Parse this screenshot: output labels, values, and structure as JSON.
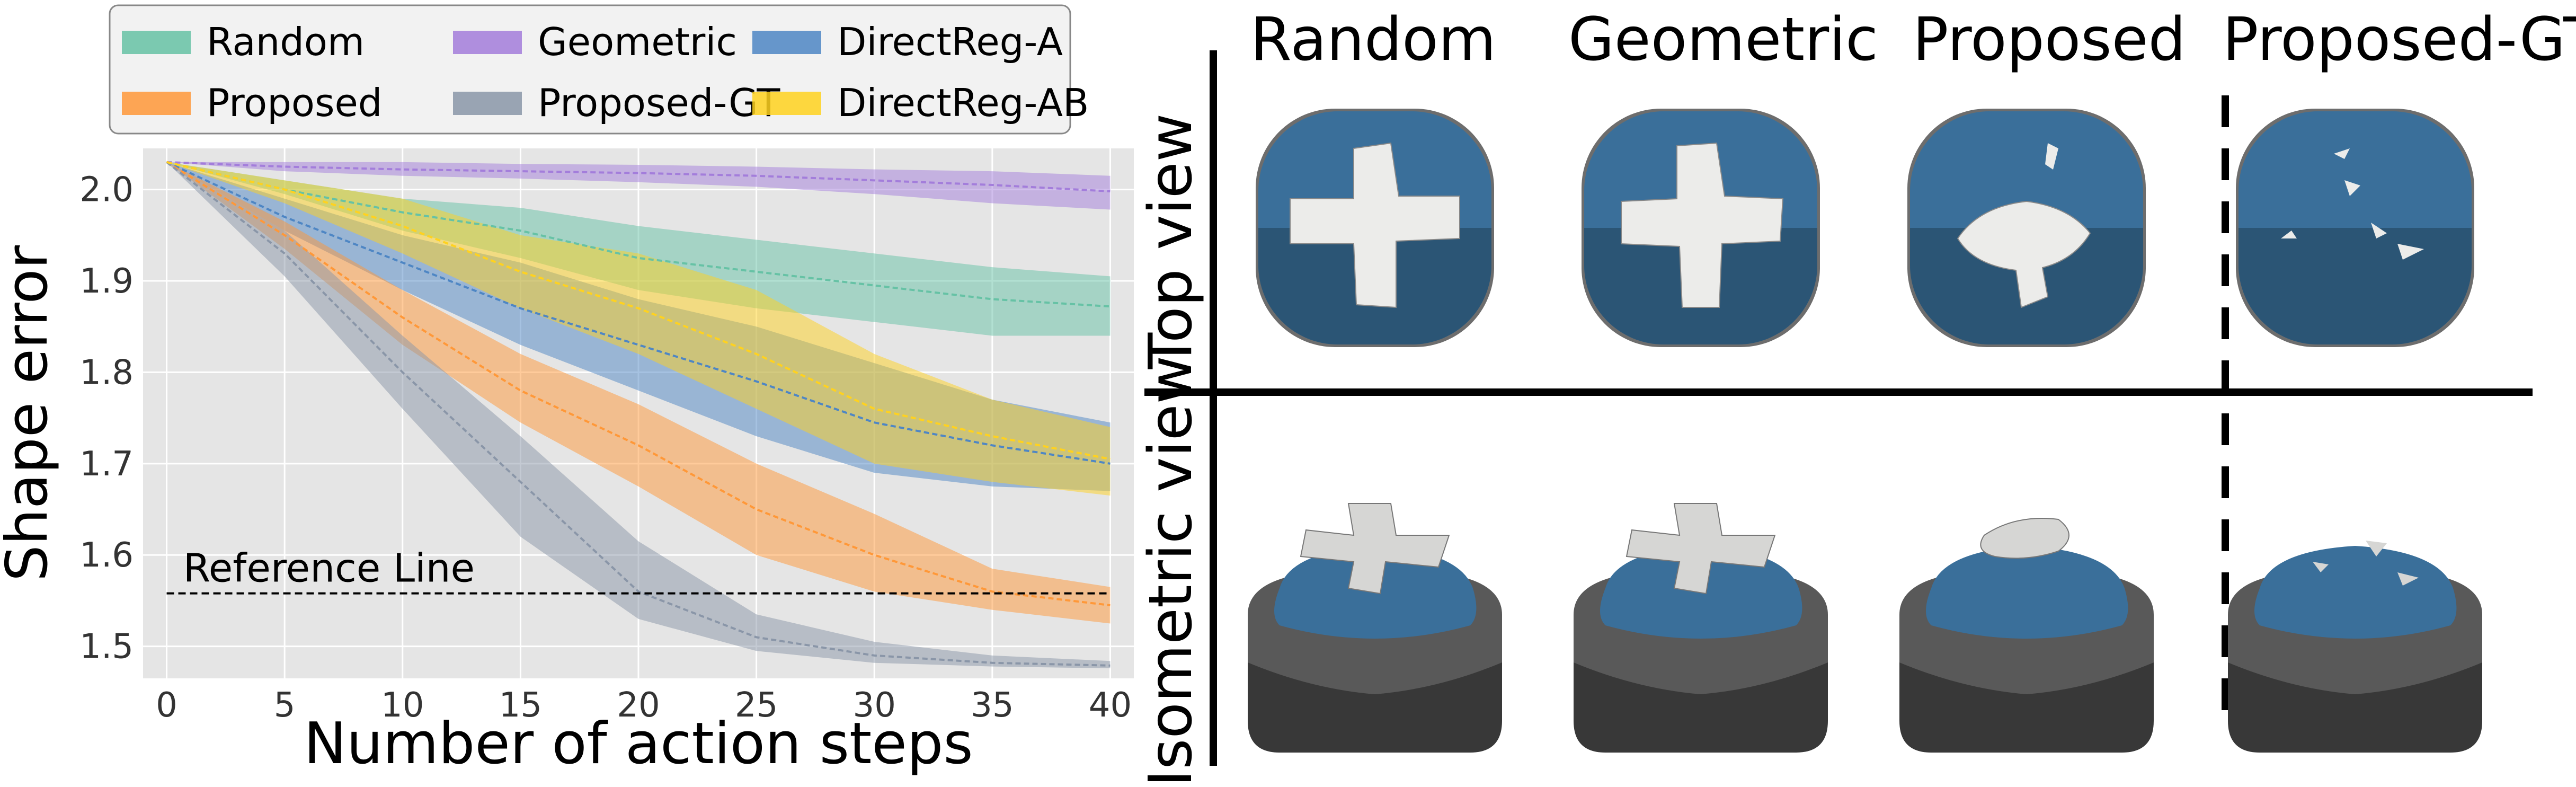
{
  "chart_data": {
    "type": "line",
    "title": "",
    "xlabel": "Number of action steps",
    "ylabel": "Shape error",
    "xlim": [
      -1,
      41
    ],
    "ylim": [
      1.465,
      2.045
    ],
    "xticks": [
      0,
      5,
      10,
      15,
      20,
      25,
      30,
      35,
      40
    ],
    "yticks": [
      1.5,
      1.6,
      1.7,
      1.8,
      1.9,
      2.0
    ],
    "ytick_labels": [
      "1.5",
      "1.6",
      "1.7",
      "1.8",
      "1.9",
      "2.0"
    ],
    "grid": true,
    "legend_position": "top",
    "reference_line": {
      "label": "Reference Line",
      "y": 1.558
    },
    "x": [
      0,
      5,
      10,
      15,
      20,
      25,
      30,
      35,
      40
    ],
    "series": [
      {
        "name": "Random",
        "color": "#66c2a5",
        "mean": [
          2.03,
          2.0,
          1.975,
          1.955,
          1.925,
          1.91,
          1.895,
          1.88,
          1.872
        ],
        "lower": [
          2.03,
          1.995,
          1.955,
          1.925,
          1.89,
          1.87,
          1.855,
          1.84,
          1.84
        ],
        "upper": [
          2.03,
          2.01,
          1.99,
          1.98,
          1.96,
          1.945,
          1.93,
          1.915,
          1.905
        ]
      },
      {
        "name": "Geometric",
        "color": "#a37ddb",
        "mean": [
          2.03,
          2.025,
          2.022,
          2.02,
          2.018,
          2.015,
          2.01,
          2.005,
          1.998
        ],
        "lower": [
          2.03,
          2.02,
          2.015,
          2.012,
          2.008,
          2.003,
          1.995,
          1.985,
          1.978
        ],
        "upper": [
          2.03,
          2.03,
          2.03,
          2.028,
          2.027,
          2.025,
          2.022,
          2.02,
          2.015
        ]
      },
      {
        "name": "DirectReg-A",
        "color": "#4e86c4",
        "mean": [
          2.03,
          1.97,
          1.92,
          1.87,
          1.83,
          1.79,
          1.745,
          1.72,
          1.7
        ],
        "lower": [
          2.03,
          1.955,
          1.89,
          1.83,
          1.78,
          1.73,
          1.69,
          1.675,
          1.67
        ],
        "upper": [
          2.03,
          1.99,
          1.95,
          1.92,
          1.88,
          1.85,
          1.81,
          1.77,
          1.745
        ]
      },
      {
        "name": "Proposed",
        "color": "#ff9838",
        "mean": [
          2.03,
          1.95,
          1.86,
          1.78,
          1.72,
          1.65,
          1.6,
          1.56,
          1.545
        ],
        "lower": [
          2.03,
          1.935,
          1.83,
          1.745,
          1.675,
          1.6,
          1.56,
          1.54,
          1.525
        ],
        "upper": [
          2.03,
          1.965,
          1.89,
          1.82,
          1.765,
          1.7,
          1.645,
          1.585,
          1.565
        ]
      },
      {
        "name": "Proposed-GT",
        "color": "#8a96a8",
        "mean": [
          2.03,
          1.93,
          1.8,
          1.68,
          1.56,
          1.51,
          1.49,
          1.482,
          1.479
        ],
        "lower": [
          2.03,
          1.905,
          1.76,
          1.62,
          1.53,
          1.495,
          1.482,
          1.478,
          1.476
        ],
        "upper": [
          2.03,
          1.955,
          1.84,
          1.73,
          1.615,
          1.535,
          1.505,
          1.49,
          1.484
        ]
      },
      {
        "name": "DirectReg-AB",
        "color": "#ffd21f",
        "mean": [
          2.03,
          2.0,
          1.96,
          1.91,
          1.87,
          1.82,
          1.76,
          1.73,
          1.705
        ],
        "lower": [
          2.03,
          1.985,
          1.93,
          1.87,
          1.82,
          1.76,
          1.7,
          1.68,
          1.665
        ],
        "upper": [
          2.03,
          2.01,
          1.99,
          1.95,
          1.93,
          1.89,
          1.82,
          1.77,
          1.74
        ]
      }
    ]
  },
  "figure": {
    "columns": [
      "Random",
      "Geometric",
      "Proposed",
      "Proposed-GT"
    ],
    "rows": [
      "Top view",
      "Isometric view"
    ]
  },
  "colors": {
    "plot_bg": "#e5e5e5",
    "cap_blue": "#3a6f9a",
    "cap_blue_dark": "#29516f",
    "base_dark": "#383838",
    "base_mid": "#595959",
    "overlay": "#ececea"
  }
}
